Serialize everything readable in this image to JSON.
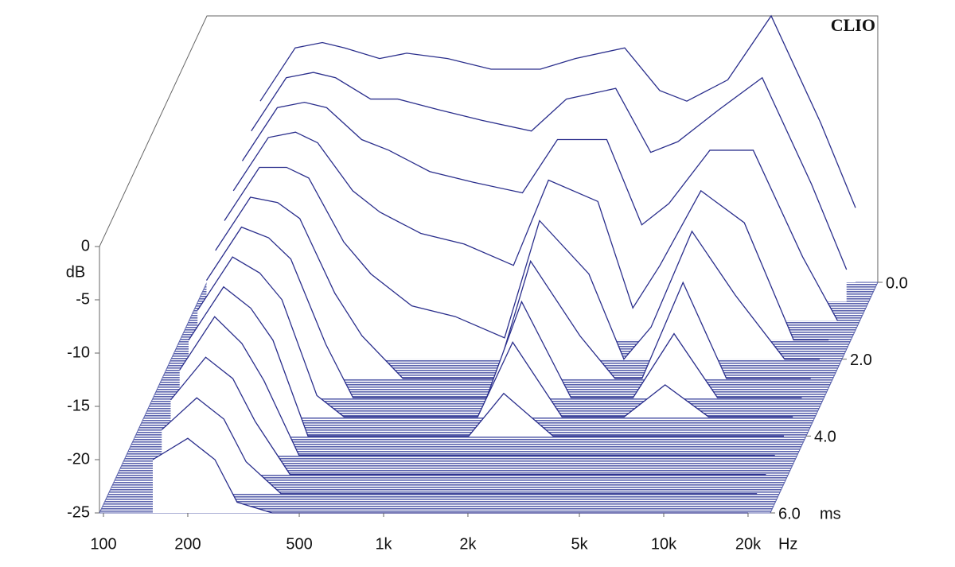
{
  "chart_data": {
    "type": "waterfall",
    "brand": "CLIO",
    "y_label": "dB",
    "x_unit": "Hz",
    "z_unit": "ms",
    "x": [
      150,
      200,
      250,
      300,
      400,
      500,
      700,
      1000,
      1500,
      2000,
      3000,
      4000,
      5000,
      7000,
      10000,
      15000,
      20000
    ],
    "xlim": [
      100,
      20000
    ],
    "log_x": true,
    "xticks": [
      100,
      200,
      500,
      {
        "value": 1000,
        "label": "1k"
      },
      {
        "value": 2000,
        "label": "2k"
      },
      {
        "value": 5000,
        "label": "5k"
      },
      {
        "value": 10000,
        "label": "10k"
      },
      {
        "value": 20000,
        "label": "20k"
      }
    ],
    "ylim": [
      -25,
      0
    ],
    "yticks": [
      0,
      -5,
      -10,
      -15,
      -20,
      -25
    ],
    "zlim": [
      0,
      6
    ],
    "zticks": [
      {
        "value": 0,
        "label": "0.0"
      },
      {
        "value": 2,
        "label": "2.0"
      },
      {
        "value": 4,
        "label": "4.0"
      },
      {
        "value": 6,
        "label": "6.0"
      }
    ],
    "color": "#2a2e8c",
    "floor_color": "#5b63ad",
    "series": [
      {
        "time": 0,
        "values": [
          -8,
          -3,
          -2.5,
          -3,
          -4,
          -3.5,
          -4,
          -5,
          -5,
          -4,
          -3,
          -7,
          -8,
          -6,
          0,
          -10,
          -18
        ]
      },
      {
        "time": 0.5,
        "values": [
          -9,
          -4,
          -3.5,
          -4,
          -6,
          -6,
          -7,
          -8,
          -9,
          -6,
          -5,
          -11,
          -10,
          -7,
          -4,
          -14,
          -22
        ]
      },
      {
        "time": 1,
        "values": [
          -10,
          -5,
          -4.5,
          -5,
          -8,
          -9,
          -11,
          -12,
          -13,
          -8,
          -8,
          -16,
          -14,
          -9,
          -9,
          -19,
          -25
        ]
      },
      {
        "time": 1.5,
        "values": [
          -11,
          -6,
          -5.5,
          -6.5,
          -11,
          -13,
          -15,
          -16,
          -18,
          -10,
          -12,
          -22,
          -18,
          -11,
          -14,
          -25,
          -25
        ]
      },
      {
        "time": 2,
        "values": [
          -12,
          -7,
          -7,
          -8,
          -14,
          -17,
          -20,
          -21,
          -23,
          -12,
          -17,
          -25,
          -22,
          -13,
          -19,
          -25,
          -25
        ]
      },
      {
        "time": 2.5,
        "values": [
          -13,
          -8,
          -8.5,
          -10,
          -17,
          -21,
          -25,
          -25,
          -25,
          -14,
          -21,
          -25,
          -25,
          -16,
          -25,
          -25,
          -25
        ]
      },
      {
        "time": 3,
        "values": [
          -14,
          -9,
          -10,
          -12,
          -20,
          -25,
          -25,
          -25,
          -25,
          -16,
          -25,
          -25,
          -25,
          -19,
          -25,
          -25,
          -25
        ]
      },
      {
        "time": 3.5,
        "values": [
          -15,
          -10,
          -11.5,
          -14,
          -23,
          -25,
          -25,
          -25,
          -25,
          -18,
          -25,
          -25,
          -25,
          -22,
          -25,
          -25,
          -25
        ]
      },
      {
        "time": 4,
        "values": [
          -16,
          -11,
          -13,
          -16,
          -25,
          -25,
          -25,
          -25,
          -25,
          -21,
          -25,
          -25,
          -25,
          -25,
          -25,
          -25,
          -25
        ]
      },
      {
        "time": 4.5,
        "values": [
          -17,
          -12,
          -14.5,
          -18,
          -25,
          -25,
          -25,
          -25,
          -25,
          -25,
          -25,
          -25,
          -25,
          -25,
          -25,
          -25,
          -25
        ]
      },
      {
        "time": 5,
        "values": [
          -18,
          -14,
          -16,
          -20,
          -25,
          -25,
          -25,
          -25,
          -25,
          -25,
          -25,
          -25,
          -25,
          -25,
          -25,
          -25,
          -25
        ]
      },
      {
        "time": 5.5,
        "values": [
          -19,
          -16,
          -18,
          -22,
          -25,
          -25,
          -25,
          -25,
          -25,
          -25,
          -25,
          -25,
          -25,
          -25,
          -25,
          -25,
          -25
        ]
      },
      {
        "time": 6,
        "values": [
          -20,
          -18,
          -20,
          -24,
          -25,
          -25,
          -25,
          -25,
          -25,
          -25,
          -25,
          -25,
          -25,
          -25,
          -25,
          -25,
          -25
        ]
      }
    ]
  }
}
